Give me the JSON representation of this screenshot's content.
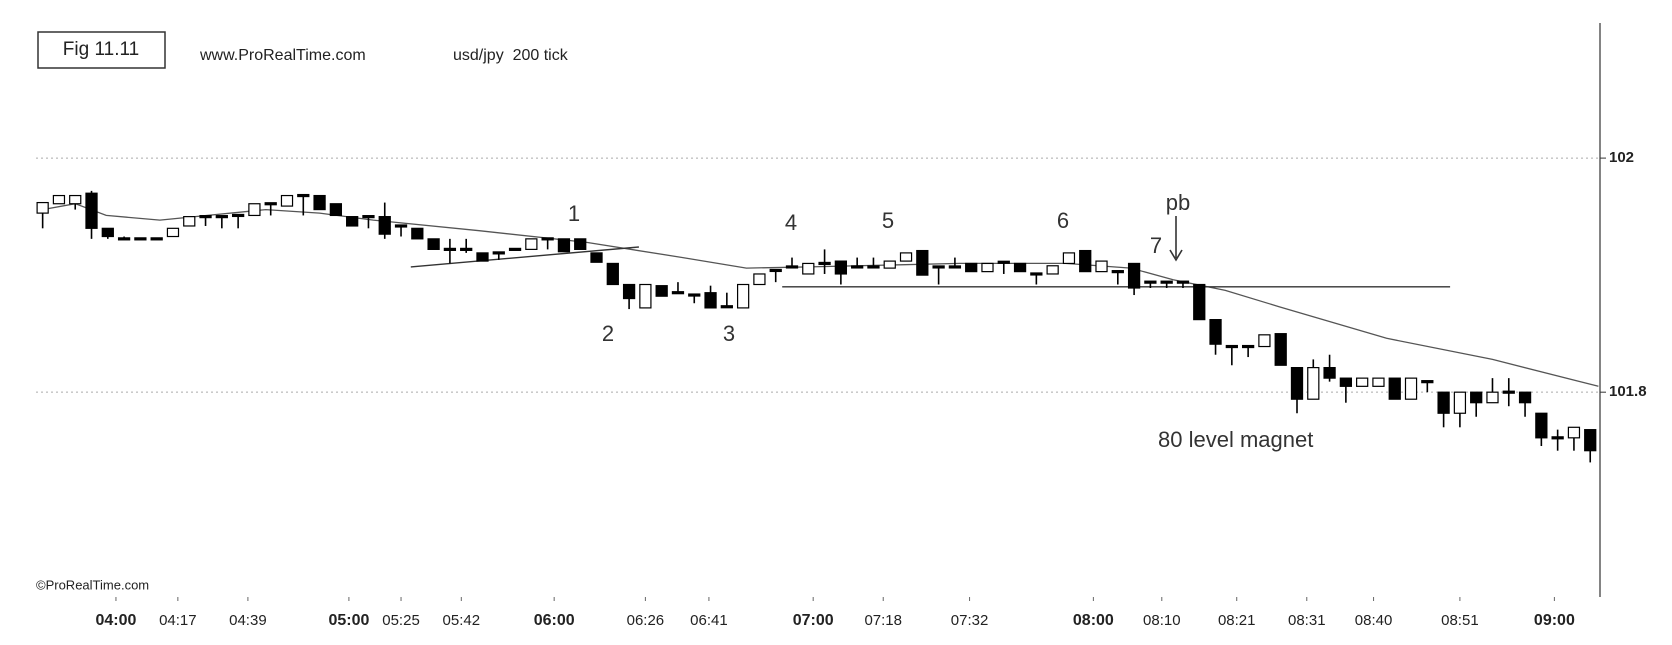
{
  "chart_data": {
    "type": "candlestick",
    "title": "Fig 11.11",
    "source": "www.ProRealTime.com",
    "subtitle": "usd/jpy  200 tick",
    "watermark": "©ProRealTime.com",
    "up_color": "#ffffff",
    "down_color": "#000000",
    "line_color": "#555555",
    "grid": true,
    "xlim": [
      -0.5,
      95.6
    ],
    "ylim": [
      101.625,
      102.115
    ],
    "yticks": [
      101.8,
      102
    ],
    "xticks": [
      {
        "value": 4.5,
        "label": "04:00"
      },
      {
        "value": 8.3,
        "label": "04:17"
      },
      {
        "value": 12.6,
        "label": "04:39"
      },
      {
        "value": 18.8,
        "label": "05:00"
      },
      {
        "value": 22.0,
        "label": "05:25"
      },
      {
        "value": 25.7,
        "label": "05:42"
      },
      {
        "value": 31.4,
        "label": "06:00"
      },
      {
        "value": 37.0,
        "label": "06:26"
      },
      {
        "value": 40.9,
        "label": "06:41"
      },
      {
        "value": 47.3,
        "label": "07:00"
      },
      {
        "value": 51.6,
        "label": "07:18"
      },
      {
        "value": 56.9,
        "label": "07:32"
      },
      {
        "value": 64.5,
        "label": "08:00"
      },
      {
        "value": 68.7,
        "label": "08:10"
      },
      {
        "value": 73.3,
        "label": "08:21"
      },
      {
        "value": 77.6,
        "label": "08:31"
      },
      {
        "value": 81.7,
        "label": "08:40"
      },
      {
        "value": 87.0,
        "label": "08:51"
      },
      {
        "value": 92.8,
        "label": "09:00"
      }
    ],
    "open": [
      101.953,
      101.961,
      101.961,
      101.97,
      101.94,
      101.931,
      101.931,
      101.931,
      101.933,
      101.942,
      101.95,
      101.95,
      101.951,
      101.951,
      101.961,
      101.959,
      101.968,
      101.968,
      101.961,
      101.95,
      101.95,
      101.95,
      101.942,
      101.94,
      101.931,
      101.922,
      101.922,
      101.919,
      101.919,
      101.922,
      101.922,
      101.931,
      101.931,
      101.931,
      101.919,
      101.91,
      101.892,
      101.872,
      101.891,
      101.885,
      101.883,
      101.885,
      101.873,
      101.872,
      101.892,
      101.904,
      101.907,
      101.901,
      101.91,
      101.912,
      101.907,
      101.907,
      101.906,
      101.912,
      101.921,
      101.907,
      101.907,
      101.91,
      101.903,
      101.911,
      101.91,
      101.901,
      101.901,
      101.91,
      101.921,
      101.903,
      101.903,
      101.91,
      101.894,
      101.894,
      101.894,
      101.892,
      101.862,
      101.839,
      101.839,
      101.839,
      101.85,
      101.821,
      101.794,
      101.821,
      101.812,
      101.805,
      101.805,
      101.812,
      101.794,
      101.809,
      101.8,
      101.782,
      101.8,
      101.791,
      101.8,
      101.8,
      101.782,
      101.761,
      101.761,
      101.768
    ],
    "high": [
      101.962,
      101.968,
      101.968,
      101.972,
      101.94,
      101.933,
      101.931,
      101.931,
      101.94,
      101.95,
      101.95,
      101.95,
      101.951,
      101.961,
      101.961,
      101.968,
      101.968,
      101.968,
      101.961,
      101.95,
      101.95,
      101.962,
      101.942,
      101.94,
      101.931,
      101.931,
      101.931,
      101.919,
      101.919,
      101.922,
      101.931,
      101.931,
      101.931,
      101.931,
      101.919,
      101.91,
      101.892,
      101.892,
      101.891,
      101.894,
      101.883,
      101.891,
      101.885,
      101.892,
      101.901,
      101.904,
      101.915,
      101.91,
      101.922,
      101.912,
      101.915,
      101.915,
      101.912,
      101.919,
      101.921,
      101.907,
      101.915,
      101.91,
      101.91,
      101.911,
      101.91,
      101.901,
      101.908,
      101.919,
      101.921,
      101.912,
      101.903,
      101.91,
      101.894,
      101.894,
      101.894,
      101.892,
      101.862,
      101.839,
      101.839,
      101.849,
      101.85,
      101.821,
      101.828,
      101.832,
      101.812,
      101.812,
      101.812,
      101.812,
      101.812,
      101.809,
      101.8,
      101.8,
      101.8,
      101.812,
      101.812,
      101.8,
      101.782,
      101.768,
      101.77,
      101.768
    ],
    "low": [
      101.94,
      101.961,
      101.956,
      101.931,
      101.931,
      101.931,
      101.931,
      101.931,
      101.933,
      101.942,
      101.942,
      101.94,
      101.94,
      101.951,
      101.951,
      101.959,
      101.951,
      101.956,
      101.951,
      101.942,
      101.94,
      101.931,
      101.933,
      101.931,
      101.922,
      101.91,
      101.919,
      101.912,
      101.913,
      101.922,
      101.922,
      101.922,
      101.92,
      101.922,
      101.911,
      101.892,
      101.871,
      101.872,
      101.882,
      101.885,
      101.876,
      101.872,
      101.873,
      101.872,
      101.892,
      101.894,
      101.907,
      101.901,
      101.901,
      101.892,
      101.907,
      101.907,
      101.906,
      101.912,
      101.9,
      101.892,
      101.907,
      101.903,
      101.903,
      101.901,
      101.903,
      101.892,
      101.901,
      101.91,
      101.903,
      101.903,
      101.892,
      101.883,
      101.889,
      101.889,
      101.889,
      101.862,
      101.832,
      101.823,
      101.83,
      101.839,
      101.823,
      101.782,
      101.794,
      101.809,
      101.791,
      101.805,
      101.805,
      101.794,
      101.794,
      101.8,
      101.77,
      101.77,
      101.779,
      101.791,
      101.788,
      101.779,
      101.754,
      101.75,
      101.75,
      101.74
    ],
    "close": [
      101.962,
      101.968,
      101.968,
      101.94,
      101.933,
      101.931,
      101.931,
      101.931,
      101.94,
      101.95,
      101.95,
      101.95,
      101.951,
      101.961,
      101.961,
      101.968,
      101.968,
      101.956,
      101.951,
      101.942,
      101.95,
      101.935,
      101.942,
      101.931,
      101.922,
      101.922,
      101.922,
      101.912,
      101.919,
      101.922,
      101.931,
      101.931,
      101.92,
      101.922,
      101.911,
      101.892,
      101.88,
      101.892,
      101.882,
      101.885,
      101.883,
      101.872,
      101.873,
      101.892,
      101.901,
      101.904,
      101.907,
      101.91,
      101.91,
      101.901,
      101.907,
      101.907,
      101.912,
      101.919,
      101.9,
      101.907,
      101.907,
      101.903,
      101.91,
      101.911,
      101.903,
      101.901,
      101.908,
      101.919,
      101.903,
      101.912,
      101.903,
      101.889,
      101.894,
      101.894,
      101.894,
      101.862,
      101.841,
      101.839,
      101.839,
      101.849,
      101.823,
      101.794,
      101.821,
      101.812,
      101.805,
      101.812,
      101.812,
      101.794,
      101.812,
      101.809,
      101.782,
      101.8,
      101.791,
      101.8,
      101.8,
      101.791,
      101.761,
      101.761,
      101.77,
      101.75
    ],
    "moving_average": {
      "x": [
        0,
        2.0,
        3.9,
        7.2,
        13.7,
        17.0,
        20.3,
        26.8,
        33.4,
        39.3,
        43.2,
        47.1,
        56.3,
        62.8,
        66.8,
        69.4,
        72.6,
        75.9,
        82.5,
        89.0,
        95.5
      ],
      "values": [
        101.956,
        101.961,
        101.951,
        101.947,
        101.956,
        101.953,
        101.947,
        101.938,
        101.928,
        101.915,
        101.906,
        101.907,
        101.91,
        101.91,
        101.906,
        101.896,
        101.887,
        101.873,
        101.846,
        101.828,
        101.805
      ]
    },
    "trend_lines": [
      {
        "x": [
          22.6,
          36.6
        ],
        "values": [
          101.907,
          101.924
        ]
      },
      {
        "x": [
          45.4,
          86.4
        ],
        "values": [
          101.89,
          101.89
        ]
      }
    ],
    "annotations": [
      "1",
      "2",
      "3",
      "4",
      "5",
      "6",
      "7",
      "pb",
      "80 level magnet"
    ]
  }
}
